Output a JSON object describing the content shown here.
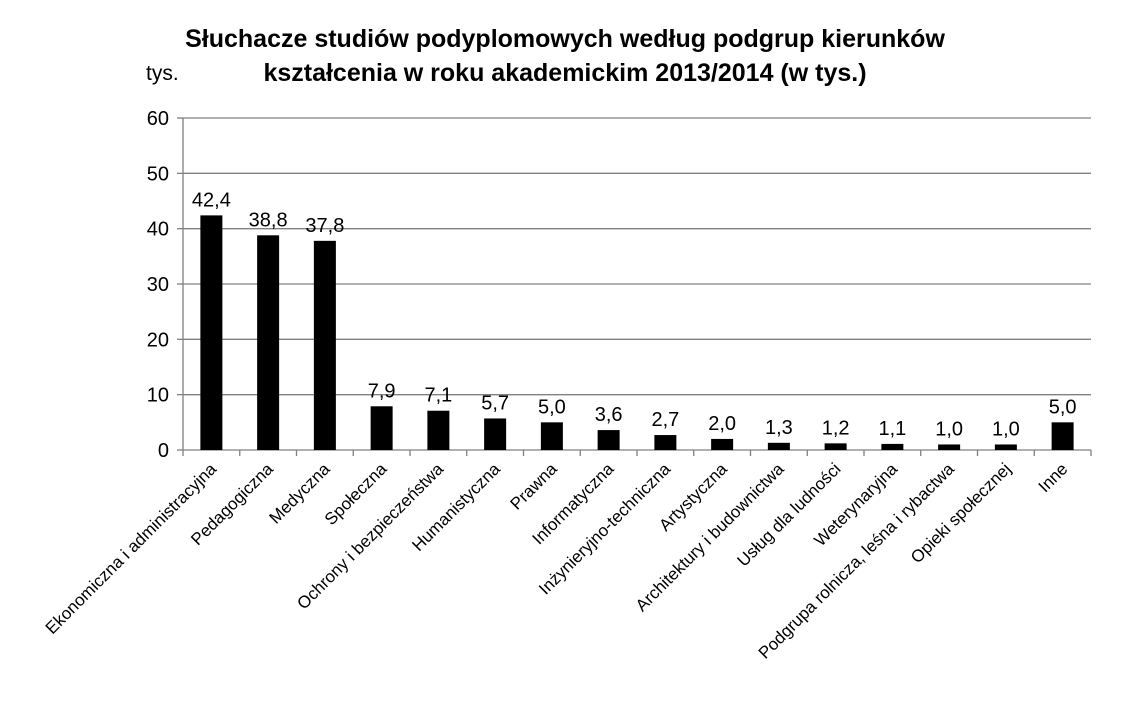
{
  "chart_data": {
    "type": "bar",
    "title_lines": [
      "Słuchacze studiów podyplomowych według podgrup kierunków",
      "kształcenia w roku akademickim 2013/2014 (w tys.)"
    ],
    "unit_label": "tys.",
    "categories": [
      "Ekonomiczna i administracyjna",
      "Pedagogiczna",
      "Medyczna",
      "Społeczna",
      "Ochrony i bezpieczeństwa",
      "Humanistyczna",
      "Prawna",
      "Informatyczna",
      "Inżynieryjno-techniczna",
      "Artystyczna",
      "Architektury i budownictwa",
      "Usług dla ludności",
      "Weterynaryjna",
      "Podgrupa rolnicza, leśna i rybactwa",
      "Opieki społecznej",
      "Inne"
    ],
    "values": [
      42.4,
      38.8,
      37.8,
      7.9,
      7.1,
      5.7,
      5.0,
      3.6,
      2.7,
      2.0,
      1.3,
      1.2,
      1.1,
      1.0,
      1.0,
      5.0
    ],
    "value_labels": [
      "42,4",
      "38,8",
      "37,8",
      "7,9",
      "7,1",
      "5,7",
      "5,0",
      "3,6",
      "2,7",
      "2,0",
      "1,3",
      "1,2",
      "1,1",
      "1,0",
      "1,0",
      "5,0"
    ],
    "ylim": [
      0,
      60
    ],
    "yticks": [
      0,
      10,
      20,
      30,
      40,
      50,
      60
    ],
    "grid": true,
    "bar_color": "#000000",
    "grid_color": "#808080"
  }
}
